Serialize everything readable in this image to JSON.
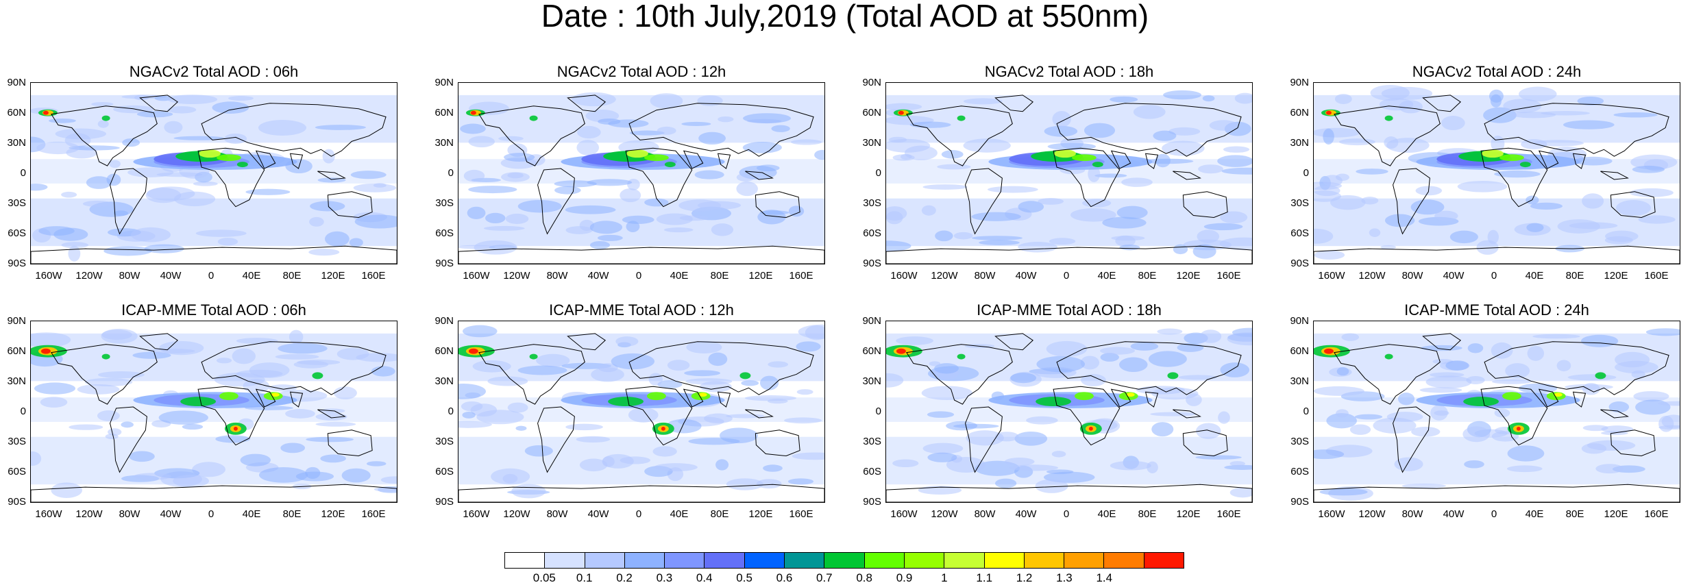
{
  "title": "Date : 10th July,2019 (Total AOD at 550nm)",
  "panels": [
    {
      "title": "NGACv2 Total AOD : 06h",
      "model": "NGACv2",
      "hour": "06h"
    },
    {
      "title": "NGACv2 Total AOD : 12h",
      "model": "NGACv2",
      "hour": "12h"
    },
    {
      "title": "NGACv2 Total AOD : 18h",
      "model": "NGACv2",
      "hour": "18h"
    },
    {
      "title": "NGACv2 Total AOD : 24h",
      "model": "NGACv2",
      "hour": "24h"
    },
    {
      "title": "ICAP-MME Total AOD : 06h",
      "model": "ICAP-MME",
      "hour": "06h"
    },
    {
      "title": "ICAP-MME Total AOD : 12h",
      "model": "ICAP-MME",
      "hour": "12h"
    },
    {
      "title": "ICAP-MME Total AOD : 18h",
      "model": "ICAP-MME",
      "hour": "18h"
    },
    {
      "title": "ICAP-MME Total AOD : 24h",
      "model": "ICAP-MME",
      "hour": "24h"
    }
  ],
  "lat_labels": [
    "90N",
    "60N",
    "30N",
    "0",
    "30S",
    "60S",
    "90S"
  ],
  "lon_labels": [
    "160W",
    "120W",
    "80W",
    "40W",
    "0",
    "40E",
    "80E",
    "120E",
    "160E"
  ],
  "colorbar": {
    "levels": [
      "0.05",
      "0.1",
      "0.2",
      "0.3",
      "0.4",
      "0.5",
      "0.6",
      "0.7",
      "0.8",
      "0.9",
      "1",
      "1.1",
      "1.2",
      "1.3",
      "1.4"
    ],
    "colors": [
      "#ffffff",
      "#d6e2ff",
      "#b5c9ff",
      "#8eb2ff",
      "#7f96ff",
      "#6370f8",
      "#0063ff",
      "#009696",
      "#00c633",
      "#63ff00",
      "#96ff00",
      "#c6ff33",
      "#ffff00",
      "#ffc600",
      "#ffa000",
      "#ff7c00",
      "#ff1900"
    ]
  }
}
